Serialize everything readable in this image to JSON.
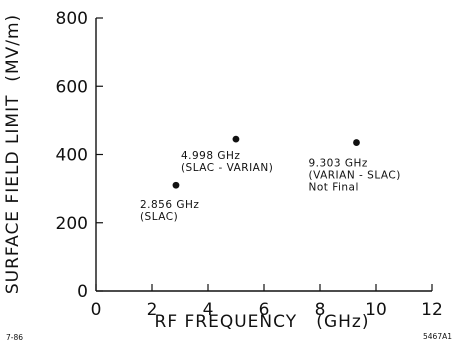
{
  "chart_data": {
    "type": "scatter",
    "xlabel": "RF FREQUENCY   (GHz)",
    "ylabel": "SURFACE FIELD LIMIT  (MV/m)",
    "xlim": [
      0,
      12
    ],
    "ylim": [
      0,
      800
    ],
    "x_ticks": [
      0,
      2,
      4,
      6,
      8,
      10,
      12
    ],
    "y_ticks": [
      0,
      200,
      400,
      600,
      800
    ],
    "grid": false,
    "points": [
      {
        "x": 2.856,
        "y": 310,
        "label_lines": [
          "2.856 GHz",
          "(SLAC)"
        ]
      },
      {
        "x": 4.998,
        "y": 445,
        "label_lines": [
          "4.998 GHz",
          "(SLAC - VARIAN)"
        ]
      },
      {
        "x": 9.303,
        "y": 435,
        "label_lines": [
          "9.303 GHz",
          "(VARIAN - SLAC)",
          "Not Final"
        ]
      }
    ],
    "footer_left": "7-86",
    "footer_right": "5467A1"
  }
}
